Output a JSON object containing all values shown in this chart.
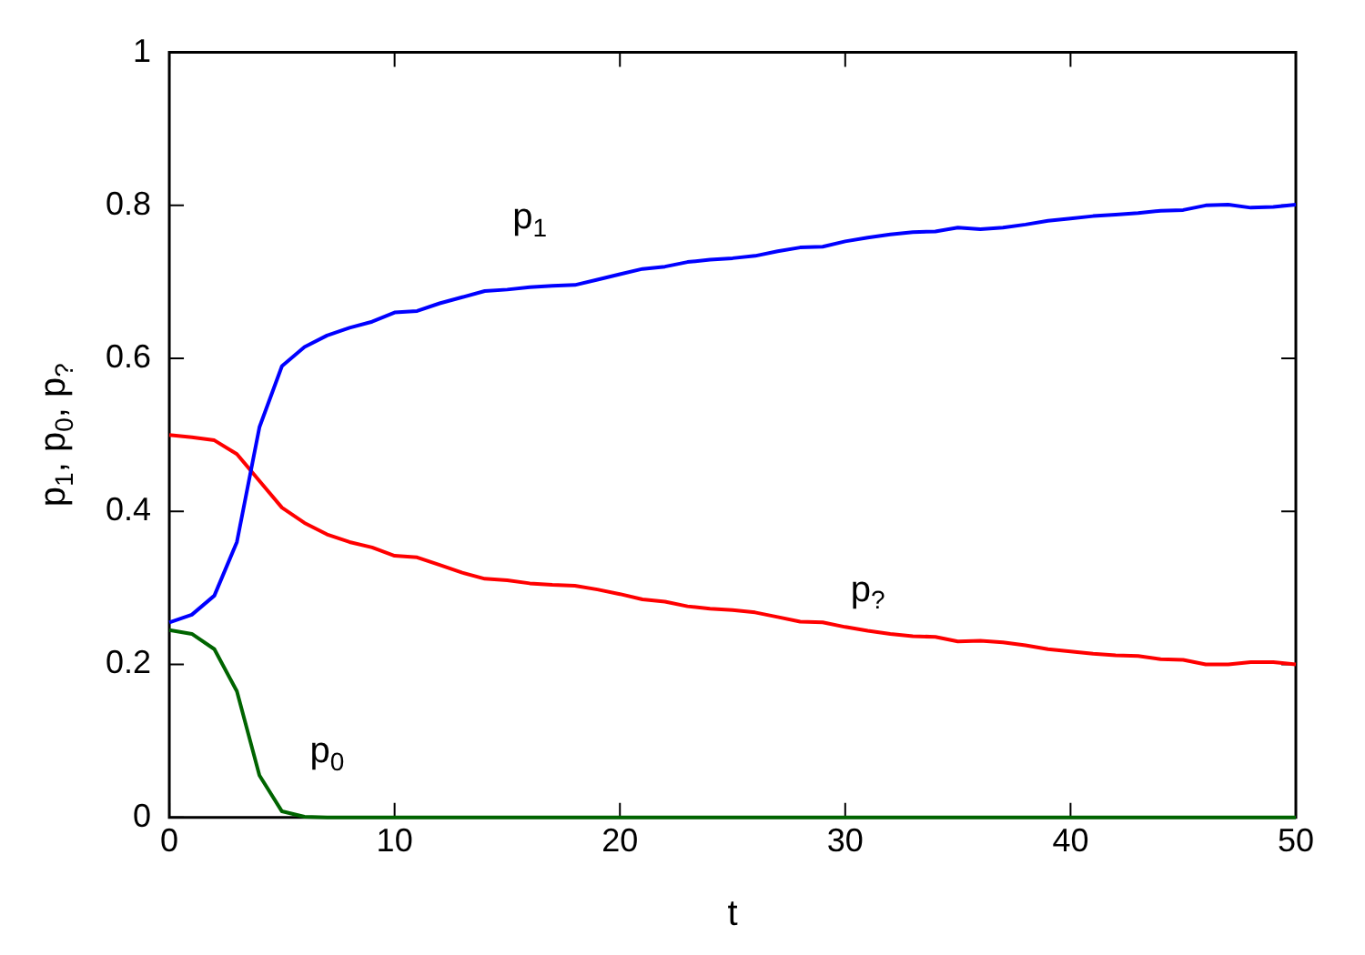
{
  "chart_data": {
    "type": "line",
    "xlabel": "t",
    "ylabel": "p$_{1}$, p$_{0}$, p$_{?}$",
    "x": [
      0,
      1,
      2,
      3,
      4,
      5,
      6,
      7,
      8,
      9,
      10,
      11,
      12,
      13,
      14,
      15,
      16,
      17,
      18,
      19,
      20,
      21,
      22,
      23,
      24,
      25,
      26,
      27,
      28,
      29,
      30,
      31,
      32,
      33,
      34,
      35,
      36,
      37,
      38,
      39,
      40,
      41,
      42,
      43,
      44,
      45,
      46,
      47,
      48,
      49,
      50
    ],
    "series": [
      {
        "name": "p$_{1}$",
        "color": "#0000ff",
        "values": [
          0.255,
          0.265,
          0.29,
          0.36,
          0.51,
          0.59,
          0.615,
          0.63,
          0.64,
          0.648,
          0.66,
          0.662,
          0.672,
          0.68,
          0.688,
          0.69,
          0.693,
          0.695,
          0.696,
          0.703,
          0.71,
          0.717,
          0.72,
          0.726,
          0.729,
          0.731,
          0.734,
          0.74,
          0.745,
          0.746,
          0.753,
          0.758,
          0.762,
          0.765,
          0.766,
          0.771,
          0.769,
          0.771,
          0.775,
          0.78,
          0.783,
          0.786,
          0.788,
          0.79,
          0.793,
          0.794,
          0.8,
          0.801,
          0.797,
          0.798,
          0.801
        ]
      },
      {
        "name": "p$_{?}$",
        "color": "#ff0000",
        "values": [
          0.5,
          0.497,
          0.493,
          0.475,
          0.44,
          0.405,
          0.385,
          0.37,
          0.36,
          0.353,
          0.342,
          0.34,
          0.33,
          0.32,
          0.312,
          0.31,
          0.306,
          0.304,
          0.303,
          0.298,
          0.292,
          0.285,
          0.282,
          0.276,
          0.273,
          0.271,
          0.268,
          0.262,
          0.256,
          0.255,
          0.249,
          0.244,
          0.24,
          0.237,
          0.236,
          0.23,
          0.231,
          0.229,
          0.225,
          0.22,
          0.217,
          0.214,
          0.212,
          0.211,
          0.207,
          0.206,
          0.2,
          0.2,
          0.203,
          0.203,
          0.2
        ]
      },
      {
        "name": "p$_{0}$",
        "color": "#006400",
        "values": [
          0.245,
          0.24,
          0.22,
          0.165,
          0.055,
          0.008,
          0.001,
          0,
          0,
          0,
          0,
          0,
          0,
          0,
          0,
          0,
          0,
          0,
          0,
          0,
          0,
          0,
          0,
          0,
          0,
          0,
          0,
          0,
          0,
          0,
          0,
          0,
          0,
          0,
          0,
          0,
          0,
          0,
          0,
          0,
          0,
          0,
          0,
          0,
          0,
          0,
          0,
          0,
          0,
          0,
          0
        ]
      }
    ],
    "xlim": [
      0,
      50
    ],
    "xticks": [
      0,
      10,
      20,
      30,
      40,
      50
    ],
    "ylim": [
      0,
      1
    ],
    "yticks": [
      0,
      0.2,
      0.4,
      0.6,
      0.8,
      1
    ],
    "grid": false,
    "legend": false,
    "marker": "none",
    "line_style": "solid"
  }
}
